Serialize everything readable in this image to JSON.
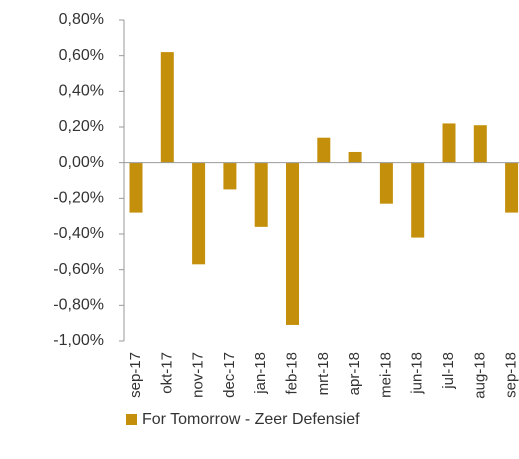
{
  "chart_data": {
    "type": "bar",
    "categories": [
      "sep-17",
      "okt-17",
      "nov-17",
      "dec-17",
      "jan-18",
      "feb-18",
      "mrt-18",
      "apr-18",
      "mei-18",
      "jun-18",
      "jul-18",
      "aug-18",
      "sep-18"
    ],
    "series": [
      {
        "name": "For Tomorrow - Zeer Defensief",
        "color": "#c4900c",
        "values": [
          -0.28,
          0.62,
          -0.57,
          -0.15,
          -0.36,
          -0.91,
          0.14,
          0.06,
          -0.23,
          -0.42,
          0.22,
          0.21,
          -0.28
        ]
      }
    ],
    "ylim": [
      -1,
      0.8
    ],
    "yticks": [
      {
        "value": -1,
        "label": "-1,00%"
      },
      {
        "value": -0.8,
        "label": "-0,80%"
      },
      {
        "value": -0.6,
        "label": "-0,60%"
      },
      {
        "value": -0.4,
        "label": "-0,40%"
      },
      {
        "value": -0.2,
        "label": "-0,20%"
      },
      {
        "value": 0,
        "label": "0,00%"
      },
      {
        "value": 0.2,
        "label": "0,20%"
      },
      {
        "value": 0.4,
        "label": "0,40%"
      },
      {
        "value": 0.6,
        "label": "0,60%"
      },
      {
        "value": 0.8,
        "label": "0,80%"
      }
    ],
    "grid": false,
    "legend": "bottom"
  }
}
